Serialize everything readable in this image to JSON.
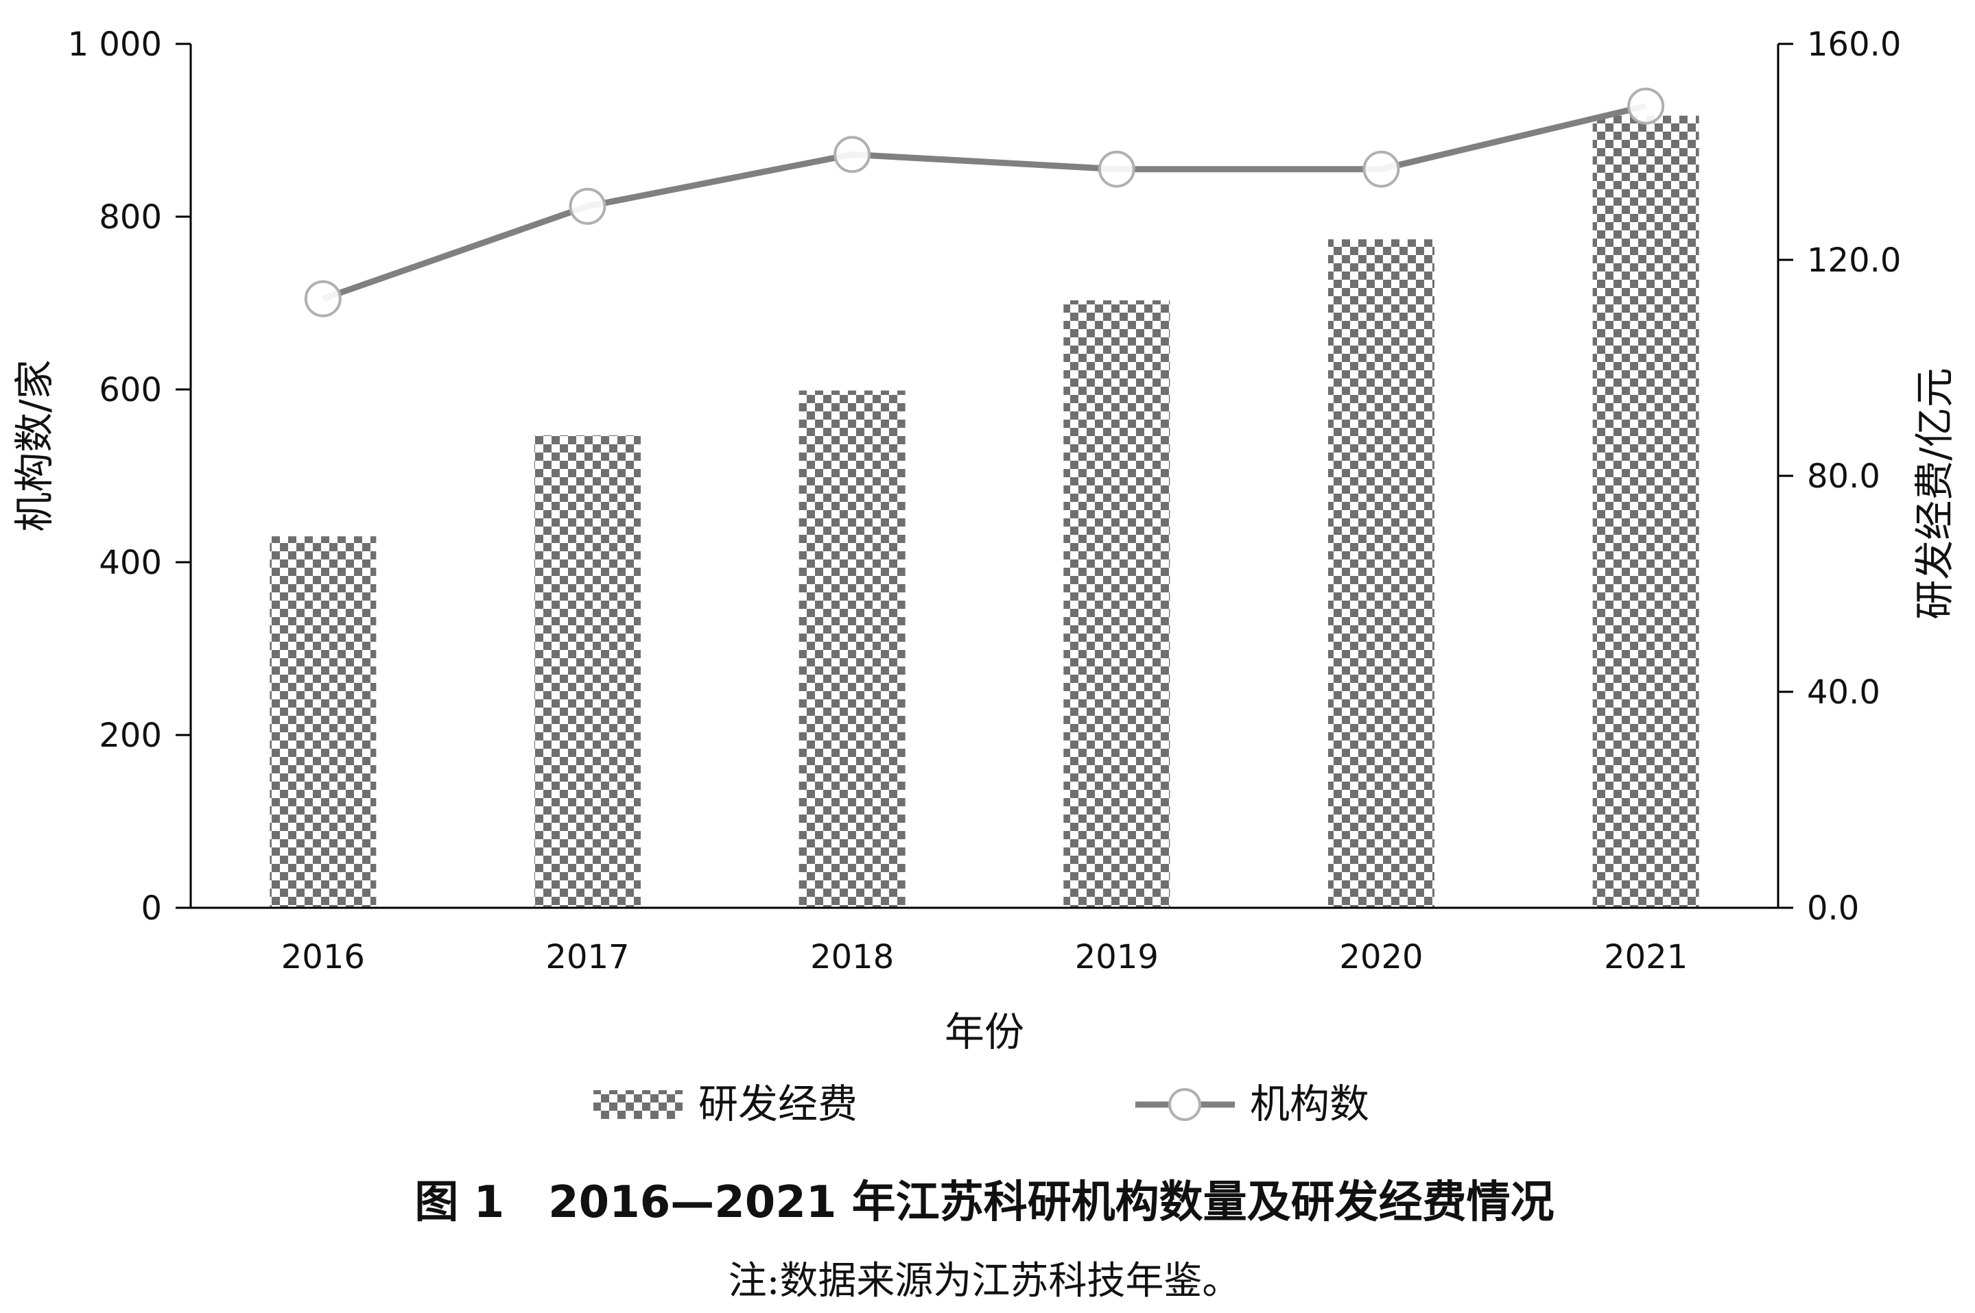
{
  "chart_data": {
    "type": "bar",
    "categories": [
      "2016",
      "2017",
      "2018",
      "2019",
      "2020",
      "2021"
    ],
    "series": [
      {
        "name": "研发经费",
        "type": "bar",
        "axis": "right",
        "values": [
          68.8,
          87.5,
          95.8,
          112.5,
          123.8,
          146.7
        ]
      },
      {
        "name": "机构数",
        "type": "line",
        "axis": "left",
        "values": [
          705,
          812,
          872,
          855,
          855,
          928
        ]
      }
    ],
    "xlabel": "年份",
    "ylabel_left": "机构数/家",
    "ylabel_right": "研发经费/亿元",
    "ylim_left": [
      0,
      1000
    ],
    "ylim_right": [
      0,
      160
    ],
    "yticks_left": [
      "0",
      "200",
      "400",
      "600",
      "800",
      "1 000"
    ],
    "yticks_right": [
      "0.0",
      "40.0",
      "80.0",
      "120.0",
      "160.0"
    ],
    "grid": false,
    "legend_position": "bottom"
  },
  "caption": {
    "title": "图 1　2016—2021 年江苏科研机构数量及研发经费情况",
    "note": "注:数据来源为江苏科技年鉴。"
  },
  "colors": {
    "bar_dark": "#6f6f6f",
    "line": "#808080",
    "marker_edge": "#b0b0b0",
    "axis": "#000000"
  }
}
